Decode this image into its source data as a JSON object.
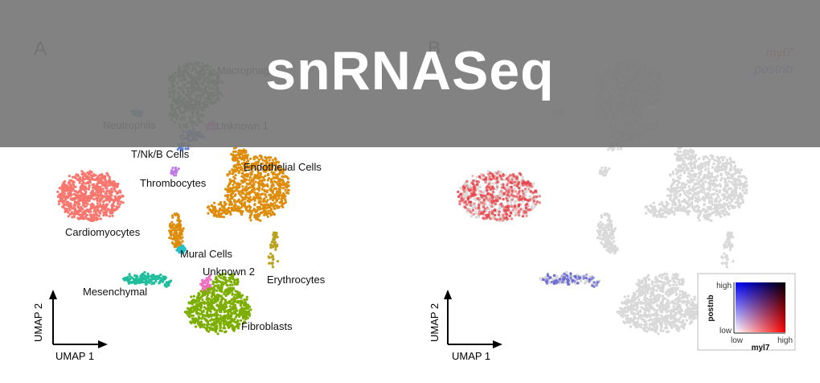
{
  "banner": {
    "title": "snRNASeq"
  },
  "chart_data": [
    {
      "type": "scatter",
      "panel_label": "A",
      "xlabel": "UMAP 1",
      "ylabel": "UMAP 2",
      "clusters": [
        {
          "name": "Macrophages",
          "label": "Macrophages",
          "color": "#5a8a5a"
        },
        {
          "name": "Neutrophils",
          "label": "Neutrophils",
          "color": "#3fa3b8"
        },
        {
          "name": "Unknown 1",
          "label": "Unknown 1",
          "color": "#d77ad6"
        },
        {
          "name": "T/Nk/B Cells",
          "label": "T/Nk/B Cells",
          "color": "#5b7fd6"
        },
        {
          "name": "Endothelial Cells",
          "label": "Endothelial Cells",
          "color": "#de8c0b"
        },
        {
          "name": "Thrombocytes",
          "label": "Thrombocytes",
          "color": "#c07ae8"
        },
        {
          "name": "Cardiomyocytes",
          "label": "Cardiomyocytes",
          "color": "#f8766d"
        },
        {
          "name": "Mural Cells",
          "label": "Mural Cells",
          "color": "#1fc1c8"
        },
        {
          "name": "Unknown 2",
          "label": "Unknown 2",
          "color": "#f06cc0"
        },
        {
          "name": "Erythrocytes",
          "label": "Erythrocytes",
          "color": "#b9a21c"
        },
        {
          "name": "Mesenchymal",
          "label": "Mesenchymal",
          "color": "#1fbd9c"
        },
        {
          "name": "Fibroblasts",
          "label": "Fibroblasts",
          "color": "#7cae00"
        }
      ]
    },
    {
      "type": "scatter",
      "panel_label": "B",
      "xlabel": "UMAP 1",
      "ylabel": "UMAP 2",
      "genes": [
        {
          "name": "myl7",
          "color": "#e8454a"
        },
        {
          "name": "postnb",
          "color": "#6a6ad0"
        }
      ],
      "legend": {
        "xlabel": "myl7",
        "ylabel": "postnb",
        "x_low": "low",
        "x_high": "high",
        "y_low": "low",
        "y_high": "high",
        "position": "bottom-right"
      },
      "background_color": "#d9d9d9"
    }
  ]
}
